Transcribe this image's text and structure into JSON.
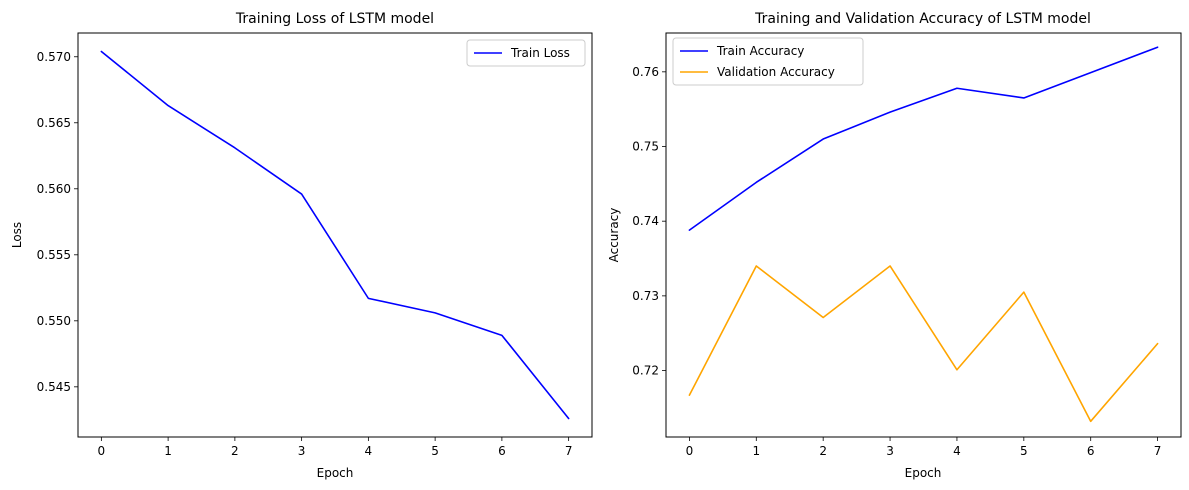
{
  "chart_data": [
    {
      "type": "line",
      "title": "Training Loss of LSTM model",
      "xlabel": "Epoch",
      "ylabel": "Loss",
      "xlim": [
        -0.35,
        7.35
      ],
      "ylim": [
        0.5412,
        0.5718
      ],
      "xticks": [
        0,
        1,
        2,
        3,
        4,
        5,
        6,
        7
      ],
      "xtick_labels": [
        "0",
        "1",
        "2",
        "3",
        "4",
        "5",
        "6",
        "7"
      ],
      "yticks": [
        0.545,
        0.55,
        0.555,
        0.56,
        0.565,
        0.57
      ],
      "ytick_labels": [
        "0.545",
        "0.550",
        "0.555",
        "0.560",
        "0.565",
        "0.570"
      ],
      "grid": false,
      "legend": "top-right",
      "x": [
        0,
        1,
        2,
        3,
        4,
        5,
        6,
        7
      ],
      "series": [
        {
          "name": "Train Loss",
          "color": "#0000ff",
          "values": [
            0.5704,
            0.5663,
            0.5631,
            0.5596,
            0.5517,
            0.5506,
            0.5489,
            0.5426
          ]
        }
      ]
    },
    {
      "type": "line",
      "title": "Training and Validation Accuracy of LSTM model",
      "xlabel": "Epoch",
      "ylabel": "Accuracy",
      "xlim": [
        -0.35,
        7.35
      ],
      "ylim": [
        0.7111,
        0.7652
      ],
      "xticks": [
        0,
        1,
        2,
        3,
        4,
        5,
        6,
        7
      ],
      "xtick_labels": [
        "0",
        "1",
        "2",
        "3",
        "4",
        "5",
        "6",
        "7"
      ],
      "yticks": [
        0.72,
        0.73,
        0.74,
        0.75,
        0.76
      ],
      "ytick_labels": [
        "0.72",
        "0.73",
        "0.74",
        "0.75",
        "0.76"
      ],
      "grid": false,
      "legend": "top-left",
      "x": [
        0,
        1,
        2,
        3,
        4,
        5,
        6,
        7
      ],
      "series": [
        {
          "name": "Train Accuracy",
          "color": "#0000ff",
          "values": [
            0.7388,
            0.7452,
            0.751,
            0.7546,
            0.7578,
            0.7565,
            0.7599,
            0.7633
          ]
        },
        {
          "name": "Validation Accuracy",
          "color": "#ffa500",
          "values": [
            0.7167,
            0.734,
            0.7271,
            0.734,
            0.7201,
            0.7305,
            0.7132,
            0.7236
          ]
        }
      ]
    }
  ]
}
